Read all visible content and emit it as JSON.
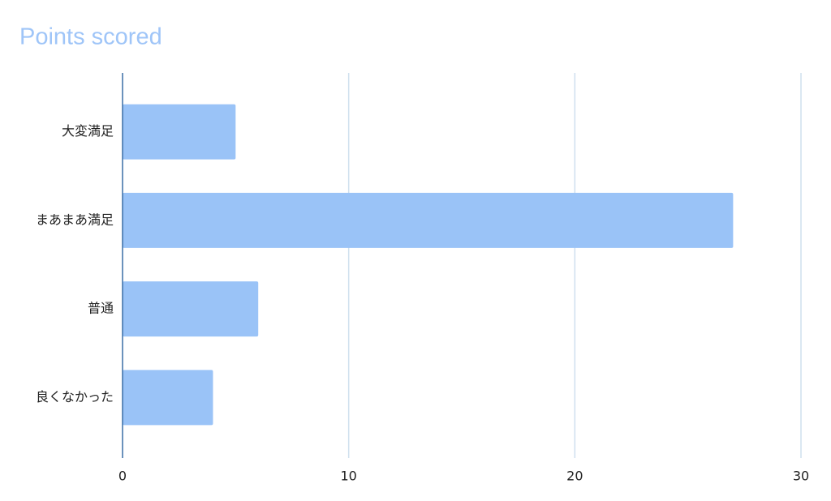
{
  "chart_data": {
    "type": "bar",
    "orientation": "horizontal",
    "title": "Points scored",
    "categories": [
      "大変満足",
      "まあまあ満足",
      "普通",
      "良くなかった"
    ],
    "values": [
      5,
      27,
      6,
      4
    ],
    "color": "#9ac3f7",
    "xlim": [
      0,
      30
    ],
    "xticks": [
      0,
      10,
      20,
      30
    ],
    "grid": true
  }
}
